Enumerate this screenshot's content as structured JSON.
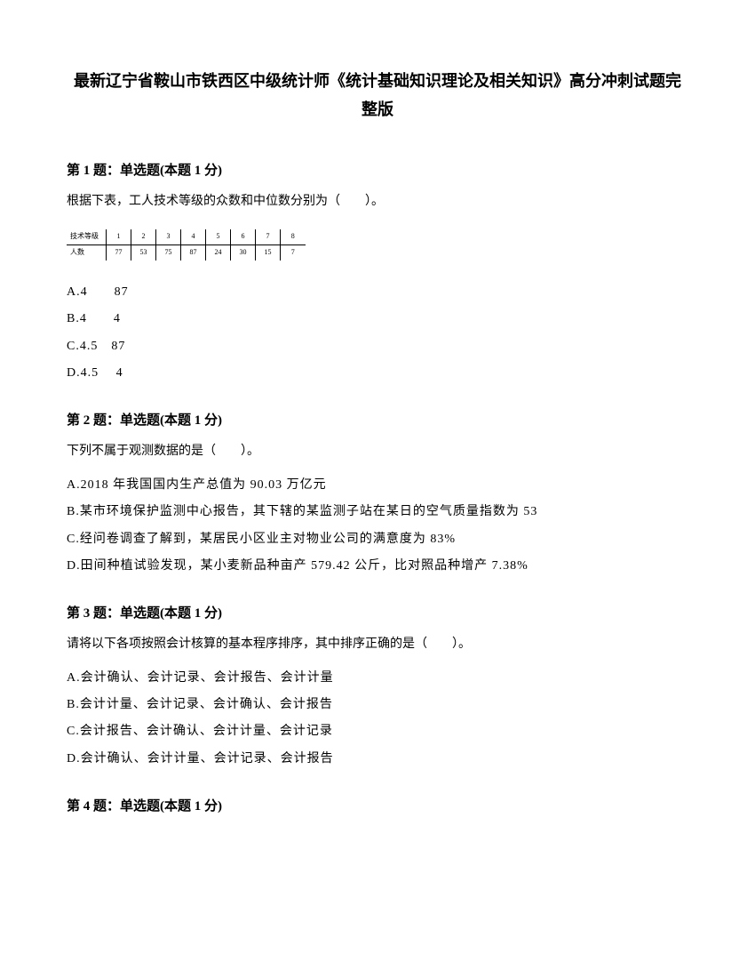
{
  "title": "最新辽宁省鞍山市铁西区中级统计师《统计基础知识理论及相关知识》高分冲刺试题完整版",
  "q1": {
    "header": "第 1 题：单选题(本题 1 分)",
    "text": "根据下表，工人技术等级的众数和中位数分别为（　　）。",
    "table": {
      "row1_label": "技术等级",
      "row1": [
        "1",
        "2",
        "3",
        "4",
        "5",
        "6",
        "7",
        "8"
      ],
      "row2_label": "人数",
      "row2": [
        "77",
        "53",
        "75",
        "87",
        "24",
        "30",
        "15",
        "7"
      ]
    },
    "options": [
      "A.4　　87",
      "B.4　　4",
      "C.4.5　87",
      "D.4.5　 4"
    ]
  },
  "q2": {
    "header": "第 2 题：单选题(本题 1 分)",
    "text": "下列不属于观测数据的是（　　）。",
    "options": [
      "A.2018 年我国国内生产总值为 90.03 万亿元",
      "B.某市环境保护监测中心报告，其下辖的某监测子站在某日的空气质量指数为 53",
      "C.经问卷调查了解到，某居民小区业主对物业公司的满意度为 83%",
      "D.田间种植试验发现，某小麦新品种亩产 579.42 公斤，比对照品种增产 7.38%"
    ]
  },
  "q3": {
    "header": "第 3 题：单选题(本题 1 分)",
    "text": "请将以下各项按照会计核算的基本程序排序，其中排序正确的是（　　）。",
    "options": [
      "A.会计确认、会计记录、会计报告、会计计量",
      "B.会计计量、会计记录、会计确认、会计报告",
      "C.会计报告、会计确认、会计计量、会计记录",
      "D.会计确认、会计计量、会计记录、会计报告"
    ]
  },
  "q4": {
    "header": "第 4 题：单选题(本题 1 分)"
  }
}
